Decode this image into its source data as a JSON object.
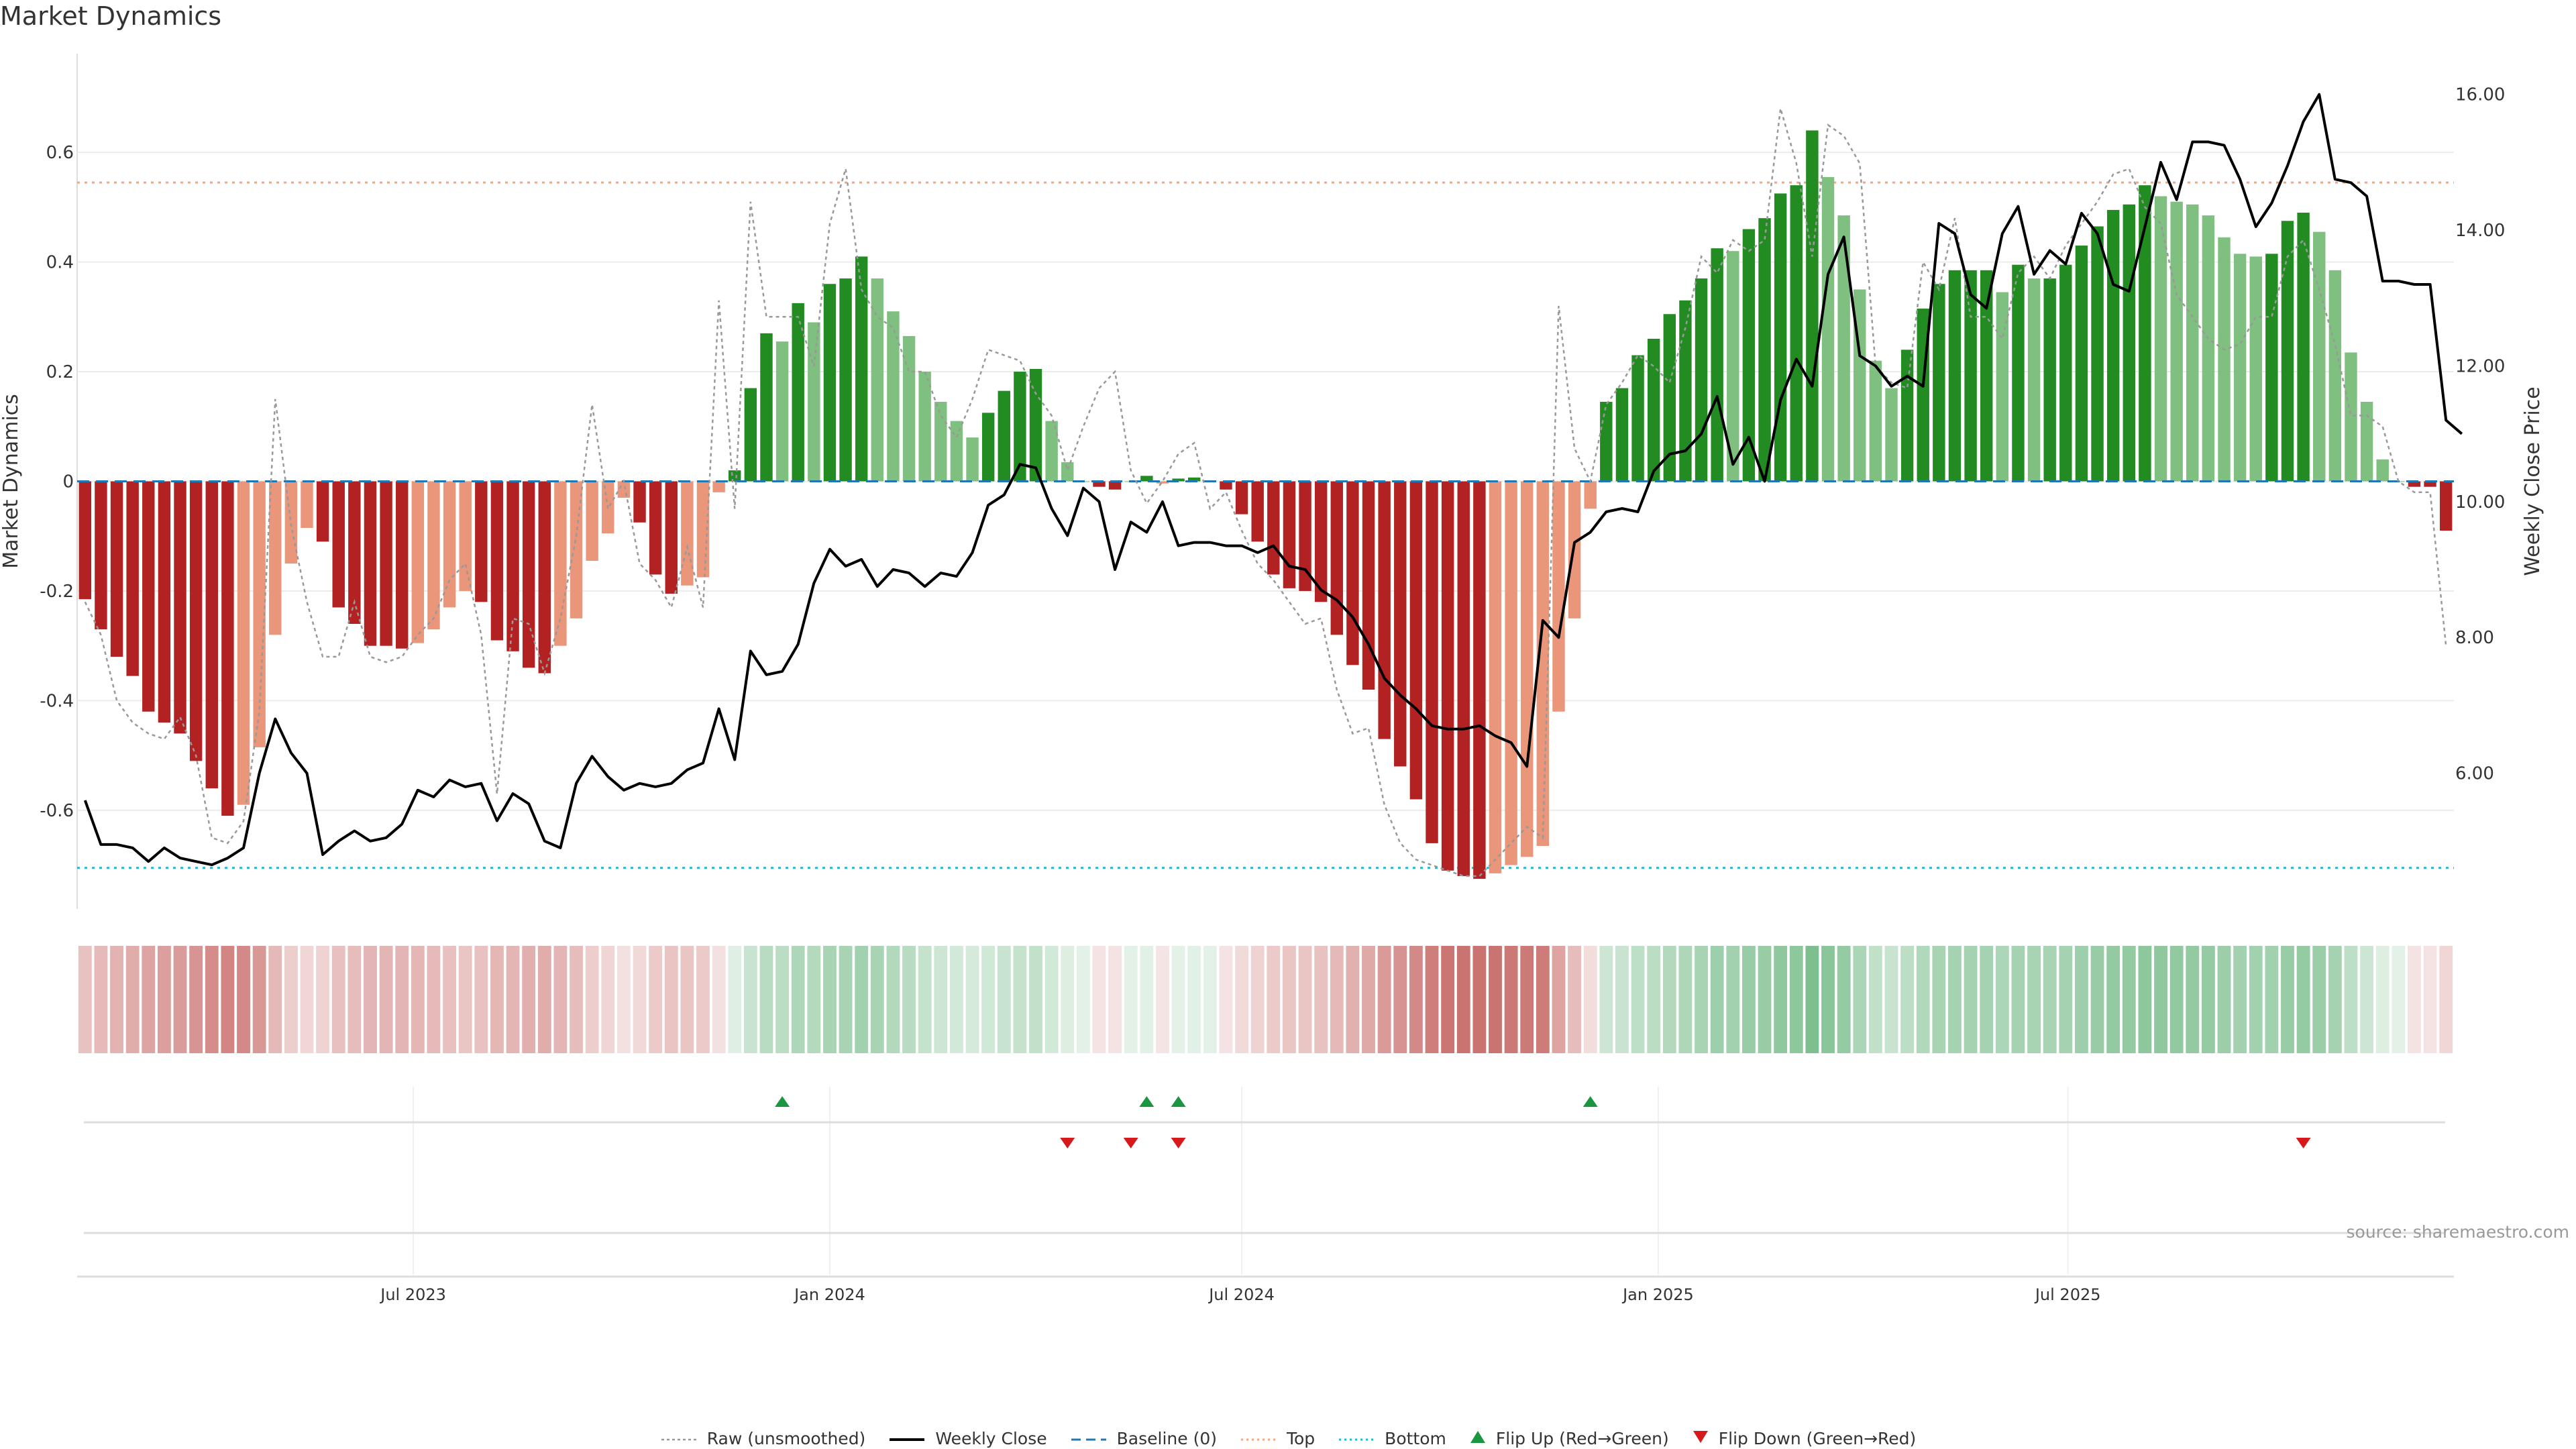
{
  "chart_data": {
    "type": "bar",
    "title": "Market Dynamics",
    "ylabel": "Market Dynamics",
    "y2label": "Weekly Close Price",
    "source": "source: sharemaestro.com",
    "ylim": [
      -0.78,
      0.78
    ],
    "y2lim": [
      4.0,
      16.6
    ],
    "yticks": [
      "-0.6",
      "-0.4",
      "-0.2",
      "0",
      "0.2",
      "0.4",
      "0.6"
    ],
    "y2ticks": [
      "6.00",
      "8.00",
      "10.00",
      "12.00",
      "14.00",
      "16.00"
    ],
    "xticks": [
      "Jul 2023",
      "Jan 2024",
      "Jul 2024",
      "Jan 2025",
      "Jul 2025"
    ],
    "start_date": "2023-02-06",
    "top_level": 0.545,
    "bottom_level": -0.705,
    "baseline": 0,
    "grid": true,
    "bar_values": [
      -0.215,
      -0.27,
      -0.32,
      -0.355,
      -0.42,
      -0.44,
      -0.46,
      -0.51,
      -0.56,
      -0.61,
      -0.59,
      -0.485,
      -0.28,
      -0.15,
      -0.085,
      -0.11,
      -0.23,
      -0.26,
      -0.3,
      -0.3,
      -0.305,
      -0.295,
      -0.27,
      -0.23,
      -0.2,
      -0.22,
      -0.29,
      -0.31,
      -0.34,
      -0.35,
      -0.3,
      -0.25,
      -0.145,
      -0.095,
      -0.03,
      -0.075,
      -0.17,
      -0.205,
      -0.19,
      -0.175,
      -0.02,
      0.02,
      0.17,
      0.27,
      0.255,
      0.325,
      0.29,
      0.36,
      0.37,
      0.41,
      0.37,
      0.31,
      0.265,
      0.2,
      0.145,
      0.11,
      0.08,
      0.125,
      0.165,
      0.2,
      0.205,
      0.11,
      0.035,
      0.0,
      -0.01,
      -0.015,
      0.0,
      0.01,
      -0.004,
      0.005,
      0.007,
      0.0,
      -0.015,
      -0.06,
      -0.11,
      -0.17,
      -0.195,
      -0.2,
      -0.22,
      -0.28,
      -0.335,
      -0.38,
      -0.47,
      -0.52,
      -0.58,
      -0.66,
      -0.71,
      -0.72,
      -0.725,
      -0.715,
      -0.7,
      -0.685,
      -0.665,
      -0.42,
      -0.25,
      -0.05,
      0.145,
      0.17,
      0.23,
      0.26,
      0.305,
      0.33,
      0.37,
      0.425,
      0.42,
      0.46,
      0.48,
      0.525,
      0.54,
      0.64,
      0.555,
      0.485,
      0.35,
      0.22,
      0.17,
      0.24,
      0.315,
      0.36,
      0.385,
      0.385,
      0.385,
      0.345,
      0.395,
      0.37,
      0.37,
      0.395,
      0.43,
      0.465,
      0.495,
      0.505,
      0.54,
      0.52,
      0.51,
      0.505,
      0.485,
      0.445,
      0.415,
      0.41,
      0.415,
      0.475,
      0.49,
      0.455,
      0.385,
      0.235,
      0.145,
      0.04,
      0.0,
      -0.01,
      -0.01,
      -0.09
    ],
    "raw_values": [
      -0.22,
      -0.28,
      -0.4,
      -0.44,
      -0.46,
      -0.47,
      -0.43,
      -0.5,
      -0.65,
      -0.66,
      -0.62,
      -0.42,
      0.15,
      -0.08,
      -0.22,
      -0.32,
      -0.32,
      -0.22,
      -0.32,
      -0.33,
      -0.32,
      -0.28,
      -0.25,
      -0.18,
      -0.15,
      -0.28,
      -0.57,
      -0.25,
      -0.26,
      -0.35,
      -0.25,
      -0.1,
      0.14,
      -0.05,
      0.0,
      -0.15,
      -0.18,
      -0.23,
      -0.12,
      -0.23,
      0.33,
      -0.05,
      0.51,
      0.3,
      0.3,
      0.3,
      0.21,
      0.47,
      0.57,
      0.35,
      0.3,
      0.28,
      0.2,
      0.2,
      0.12,
      0.08,
      0.15,
      0.24,
      0.23,
      0.22,
      0.16,
      0.12,
      0.02,
      0.1,
      0.17,
      0.2,
      0.02,
      -0.04,
      0.0,
      0.05,
      0.07,
      -0.05,
      -0.02,
      -0.09,
      -0.15,
      -0.18,
      -0.22,
      -0.26,
      -0.25,
      -0.38,
      -0.46,
      -0.45,
      -0.59,
      -0.66,
      -0.69,
      -0.7,
      -0.71,
      -0.72,
      -0.72,
      -0.69,
      -0.66,
      -0.63,
      -0.65,
      0.32,
      0.06,
      0.0,
      0.14,
      0.18,
      0.23,
      0.21,
      0.18,
      0.28,
      0.41,
      0.38,
      0.44,
      0.42,
      0.44,
      0.68,
      0.58,
      0.41,
      0.65,
      0.63,
      0.58,
      0.21,
      0.18,
      0.17,
      0.4,
      0.35,
      0.48,
      0.3,
      0.3,
      0.26,
      0.38,
      0.41,
      0.37,
      0.43,
      0.47,
      0.51,
      0.56,
      0.57,
      0.5,
      0.47,
      0.34,
      0.3,
      0.26,
      0.24,
      0.25,
      0.3,
      0.3,
      0.41,
      0.44,
      0.35,
      0.25,
      0.12,
      0.12,
      0.1,
      0.0,
      -0.02,
      -0.02,
      -0.3
    ],
    "close_values": [
      5.6,
      4.95,
      4.95,
      4.9,
      4.7,
      4.9,
      4.75,
      4.7,
      4.65,
      4.75,
      4.9,
      6.0,
      6.8,
      6.3,
      6.0,
      4.8,
      5.0,
      5.15,
      5.0,
      5.05,
      5.25,
      5.75,
      5.65,
      5.9,
      5.8,
      5.85,
      5.3,
      5.7,
      5.55,
      5.0,
      4.9,
      5.85,
      6.25,
      5.95,
      5.75,
      5.85,
      5.8,
      5.85,
      6.05,
      6.15,
      6.95,
      6.2,
      7.8,
      7.45,
      7.5,
      7.9,
      8.8,
      9.3,
      9.05,
      9.15,
      8.75,
      9.0,
      8.95,
      8.75,
      8.95,
      8.9,
      9.25,
      9.95,
      10.1,
      10.55,
      10.5,
      9.9,
      9.5,
      10.2,
      10.0,
      9.0,
      9.7,
      9.55,
      10.0,
      9.35,
      9.4,
      9.4,
      9.35,
      9.35,
      9.25,
      9.35,
      9.05,
      9.0,
      8.7,
      8.55,
      8.3,
      7.9,
      7.4,
      7.15,
      6.95,
      6.7,
      6.65,
      6.65,
      6.7,
      6.55,
      6.45,
      6.1,
      8.25,
      8.0,
      9.4,
      9.55,
      9.85,
      9.9,
      9.85,
      10.45,
      10.7,
      10.75,
      11.0,
      11.55,
      10.55,
      10.95,
      10.3,
      11.5,
      12.1,
      11.7,
      13.35,
      13.9,
      12.15,
      12.0,
      11.7,
      11.85,
      11.7,
      14.1,
      13.95,
      13.05,
      12.85,
      13.95,
      14.35,
      13.35,
      13.7,
      13.5,
      14.25,
      13.95,
      13.2,
      13.1,
      14.05,
      15.0,
      14.45,
      15.3,
      15.3,
      15.25,
      14.75,
      14.05,
      14.4,
      14.95,
      15.6,
      16.0,
      14.75,
      14.7,
      14.5,
      13.25,
      13.25,
      13.2,
      13.2,
      11.2,
      11.0
    ],
    "flip_up": [
      "2023-12-11",
      "2024-05-20",
      "2024-06-03",
      "2024-12-02"
    ],
    "flip_down": [
      "2024-04-15",
      "2024-05-13",
      "2024-06-03",
      "2025-10-13"
    ],
    "legend": [
      "Raw (unsmoothed)",
      "Weekly Close",
      "Baseline (0)",
      "Top",
      "Bottom",
      "Flip Up (Red→Green)",
      "Flip Down (Green→Red)"
    ],
    "colors": {
      "bar_strong_green": "#228b22",
      "bar_light_green": "#7fbf7f",
      "bar_strong_red": "#b22222",
      "bar_light_red": "#e9967a",
      "raw": "#999999",
      "close": "#000000",
      "baseline": "#1f77b4",
      "top": "#f4a582",
      "bottom": "#17becf",
      "flip_up": "#1a9641",
      "flip_down": "#d7191c"
    }
  }
}
